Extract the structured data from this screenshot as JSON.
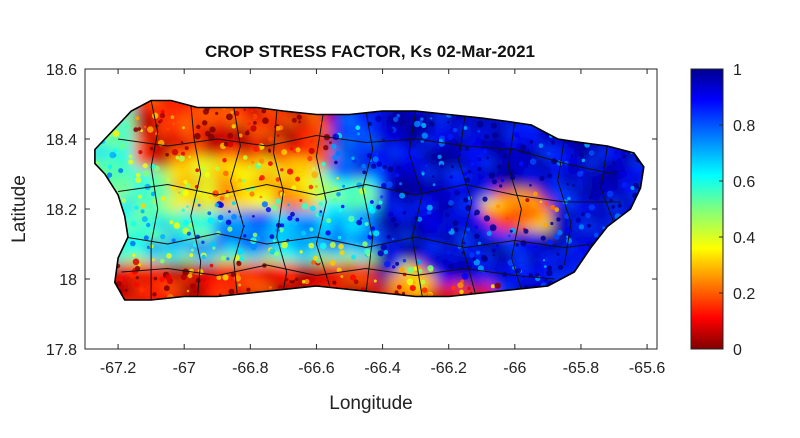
{
  "chart_data": {
    "type": "heatmap",
    "title": "CROP STRESS FACTOR, Ks  02-Mar-2021",
    "xlabel": "Longitude",
    "ylabel": "Latitude",
    "xlim": [
      -67.3,
      -65.57
    ],
    "ylim": [
      17.8,
      18.6
    ],
    "xticks": [
      "-67.2",
      "-67",
      "-66.8",
      "-66.6",
      "-66.4",
      "-66.2",
      "-66",
      "-65.8",
      "-65.6"
    ],
    "xtick_values": [
      -67.2,
      -67.0,
      -66.8,
      -66.6,
      -66.4,
      -66.2,
      -66.0,
      -65.8,
      -65.6
    ],
    "yticks": [
      "18.6",
      "18.4",
      "18.2",
      "18",
      "17.8"
    ],
    "ytick_values": [
      18.6,
      18.4,
      18.2,
      18.0,
      17.8
    ],
    "colorbar": {
      "colormap": "jet",
      "range": [
        0,
        1
      ],
      "ticks": [
        "1",
        "0.8",
        "0.6",
        "0.4",
        "0.2",
        "0"
      ],
      "tick_values": [
        1,
        0.8,
        0.6,
        0.4,
        0.2,
        0
      ]
    },
    "region": "Puerto Rico",
    "pattern": "Low Ks (red, high stress) along the south coast and in the northwestern hills; mid values (yellow/cyan) in the west-central interior; high Ks (blue, low stress) across the east and the central band"
  }
}
